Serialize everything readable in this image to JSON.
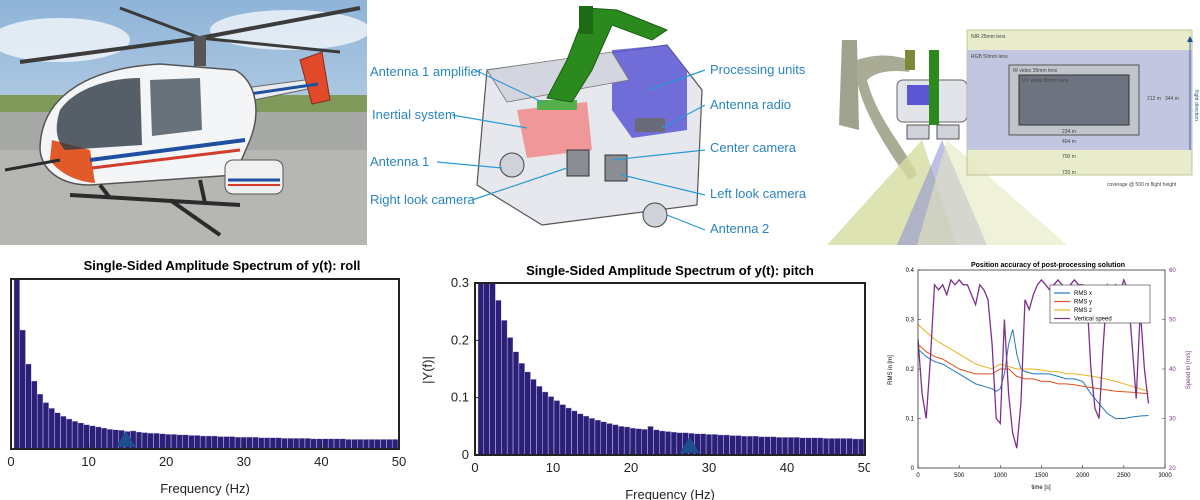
{
  "diagram": {
    "labels": {
      "antenna1_amplifier": "Antenna 1 amplifier",
      "inertial_system": "Inertial system",
      "antenna1": "Antenna 1",
      "right_look_camera": "Right look camera",
      "processing_units": "Processing units",
      "antenna_radio": "Antenna radio",
      "center_camera": "Center camera",
      "left_look_camera": "Left look camera",
      "antenna2": "Antenna 2"
    },
    "colors": {
      "label": "#2a84c2",
      "leader": "#2a9ad6",
      "arm": "#2a8a1e"
    }
  },
  "footprint": {
    "labels": {
      "nir_lens": "NIR 25mm lens",
      "rgb_lens": "RGB 50mm lens",
      "ir_video": "IR video 35mm lens",
      "uv_video": "UV video 50mm lens",
      "w234": "234 m",
      "w404": "404 m",
      "w700": "700 m",
      "w720": "720 m",
      "h212": "212 m",
      "h344": "344 m",
      "flight_direction": "flight direction",
      "coverage": "coverage @ 500 m flight height"
    }
  },
  "chart_data": [
    {
      "type": "bar",
      "title": "Single-Sided Amplitude Spectrum of y(t): roll",
      "xlabel": "Frequency (Hz)",
      "ylabel": "",
      "xlim": [
        0,
        50
      ],
      "ylim": [
        0,
        0.3
      ],
      "xticks": [
        "0",
        "10",
        "20",
        "30",
        "40",
        "50"
      ],
      "bar_color": "#2b1f7a",
      "marker": {
        "x": 14.8,
        "color": "#1f4e8c"
      },
      "x": [
        0.75,
        1.5,
        2.25,
        3,
        3.75,
        4.5,
        5.25,
        6,
        6.75,
        7.5,
        8.25,
        9,
        9.75,
        10.5,
        11.25,
        12,
        12.75,
        13.5,
        14.25,
        15,
        15.75,
        16.5,
        17.25,
        18,
        18.75,
        19.5,
        20.25,
        21,
        21.75,
        22.5,
        23.25,
        24,
        24.75,
        25.5,
        26.25,
        27,
        27.75,
        28.5,
        29.25,
        30,
        30.75,
        31.5,
        32.25,
        33,
        33.75,
        34.5,
        35.25,
        36,
        36.75,
        37.5,
        38.25,
        39,
        39.75,
        40.5,
        41.25,
        42,
        42.75,
        43.5,
        44.25,
        45,
        45.75,
        46.5,
        47.25,
        48,
        48.75,
        49.5
      ],
      "values": [
        0.3,
        0.21,
        0.15,
        0.12,
        0.097,
        0.082,
        0.072,
        0.064,
        0.058,
        0.053,
        0.049,
        0.046,
        0.043,
        0.041,
        0.039,
        0.037,
        0.035,
        0.034,
        0.033,
        0.031,
        0.032,
        0.03,
        0.029,
        0.028,
        0.028,
        0.027,
        0.026,
        0.026,
        0.025,
        0.025,
        0.024,
        0.024,
        0.023,
        0.023,
        0.023,
        0.022,
        0.022,
        0.022,
        0.021,
        0.021,
        0.021,
        0.021,
        0.02,
        0.02,
        0.02,
        0.02,
        0.019,
        0.019,
        0.019,
        0.019,
        0.019,
        0.018,
        0.018,
        0.018,
        0.018,
        0.018,
        0.018,
        0.017,
        0.017,
        0.017,
        0.017,
        0.017,
        0.017,
        0.017,
        0.017,
        0.017
      ]
    },
    {
      "type": "bar",
      "title": "Single-Sided Amplitude Spectrum of y(t): pitch",
      "xlabel": "Frequency (Hz)",
      "ylabel": "|Y(f)|",
      "xlim": [
        0,
        50
      ],
      "ylim": [
        0,
        0.3
      ],
      "xticks": [
        "0",
        "10",
        "20",
        "30",
        "40",
        "50"
      ],
      "yticks": [
        "0",
        "0.1",
        "0.2",
        "0.3"
      ],
      "bar_color": "#2b1f7a",
      "marker": {
        "x": 27.5,
        "color": "#1f4e8c"
      },
      "x": [
        0.75,
        1.5,
        2.25,
        3,
        3.75,
        4.5,
        5.25,
        6,
        6.75,
        7.5,
        8.25,
        9,
        9.75,
        10.5,
        11.25,
        12,
        12.75,
        13.5,
        14.25,
        15,
        15.75,
        16.5,
        17.25,
        18,
        18.75,
        19.5,
        20.25,
        21,
        21.75,
        22.5,
        23.25,
        24,
        24.75,
        25.5,
        26.25,
        27,
        27.75,
        28.5,
        29.25,
        30,
        30.75,
        31.5,
        32.25,
        33,
        33.75,
        34.5,
        35.25,
        36,
        36.75,
        37.5,
        38.25,
        39,
        39.75,
        40.5,
        41.25,
        42,
        42.75,
        43.5,
        44.25,
        45,
        45.75,
        46.5,
        47.25,
        48,
        48.75,
        49.5
      ],
      "values": [
        0.3,
        0.3,
        0.3,
        0.27,
        0.235,
        0.205,
        0.18,
        0.16,
        0.145,
        0.132,
        0.12,
        0.11,
        0.102,
        0.095,
        0.088,
        0.082,
        0.077,
        0.072,
        0.068,
        0.064,
        0.061,
        0.058,
        0.055,
        0.053,
        0.05,
        0.049,
        0.047,
        0.046,
        0.045,
        0.05,
        0.044,
        0.042,
        0.041,
        0.04,
        0.039,
        0.039,
        0.038,
        0.037,
        0.037,
        0.036,
        0.036,
        0.035,
        0.035,
        0.034,
        0.034,
        0.033,
        0.033,
        0.033,
        0.032,
        0.032,
        0.032,
        0.031,
        0.031,
        0.031,
        0.031,
        0.03,
        0.03,
        0.03,
        0.03,
        0.029,
        0.029,
        0.029,
        0.029,
        0.029,
        0.028,
        0.028
      ]
    },
    {
      "type": "line",
      "title": "Position accuracy of post-processing solution",
      "xlabel": "time [s]",
      "ylabel": "RMS in [m]",
      "y2label": "Speed in [m/s]",
      "xlim": [
        0,
        3000
      ],
      "ylim": [
        0,
        0.4
      ],
      "y2lim": [
        20,
        60
      ],
      "xticks": [
        "0",
        "500",
        "1000",
        "1500",
        "2000",
        "2500",
        "3000"
      ],
      "yticks": [
        "0",
        "0.1",
        "0.2",
        "0.3",
        "0.4"
      ],
      "y2ticks": [
        "20",
        "30",
        "40",
        "50",
        "60"
      ],
      "legend_position": "top-right",
      "series": [
        {
          "name": "RMS x",
          "axis": "left",
          "color": "#1f77c4",
          "x": [
            0,
            100,
            200,
            300,
            400,
            500,
            600,
            700,
            800,
            900,
            950,
            1000,
            1050,
            1100,
            1150,
            1200,
            1250,
            1300,
            1400,
            1500,
            1600,
            1700,
            1800,
            1900,
            2000,
            2100,
            2200,
            2300,
            2400,
            2500,
            2600,
            2700,
            2800
          ],
          "y": [
            0.24,
            0.225,
            0.215,
            0.21,
            0.2,
            0.19,
            0.18,
            0.17,
            0.165,
            0.16,
            0.155,
            0.16,
            0.19,
            0.25,
            0.28,
            0.23,
            0.2,
            0.195,
            0.19,
            0.19,
            0.19,
            0.185,
            0.18,
            0.18,
            0.175,
            0.15,
            0.13,
            0.11,
            0.1,
            0.1,
            0.103,
            0.105,
            0.106
          ]
        },
        {
          "name": "RMS y",
          "axis": "left",
          "color": "#e0521c",
          "x": [
            0,
            100,
            200,
            300,
            400,
            500,
            600,
            700,
            800,
            900,
            1000,
            1100,
            1200,
            1300,
            1400,
            1500,
            1600,
            1700,
            1800,
            1900,
            2000,
            2200,
            2400,
            2600,
            2800
          ],
          "y": [
            0.25,
            0.235,
            0.225,
            0.22,
            0.21,
            0.2,
            0.195,
            0.19,
            0.19,
            0.19,
            0.2,
            0.2,
            0.185,
            0.18,
            0.18,
            0.175,
            0.175,
            0.17,
            0.17,
            0.168,
            0.165,
            0.16,
            0.155,
            0.153,
            0.15
          ]
        },
        {
          "name": "RMS z",
          "axis": "left",
          "color": "#edb120",
          "x": [
            0,
            100,
            200,
            300,
            400,
            500,
            600,
            700,
            800,
            900,
            1000,
            1100,
            1200,
            1300,
            1400,
            1500,
            1600,
            1700,
            1800,
            1900,
            2000,
            2200,
            2400,
            2600,
            2800
          ],
          "y": [
            0.29,
            0.275,
            0.26,
            0.25,
            0.24,
            0.23,
            0.22,
            0.21,
            0.205,
            0.2,
            0.21,
            0.205,
            0.2,
            0.2,
            0.2,
            0.198,
            0.195,
            0.195,
            0.19,
            0.19,
            0.188,
            0.183,
            0.175,
            0.165,
            0.155
          ]
        },
        {
          "name": "Vertical speed",
          "axis": "right",
          "color": "#7e2f8e",
          "x": [
            0,
            50,
            100,
            150,
            200,
            250,
            300,
            350,
            400,
            450,
            500,
            550,
            600,
            650,
            700,
            750,
            800,
            850,
            900,
            950,
            1000,
            1050,
            1100,
            1150,
            1200,
            1250,
            1300,
            1350,
            1400,
            1450,
            1500,
            1550,
            1600,
            1650,
            1700,
            1750,
            1800,
            1850,
            1900,
            1950,
            2000,
            2050,
            2100,
            2150,
            2200,
            2250,
            2300,
            2350,
            2400,
            2450,
            2500,
            2550,
            2600,
            2650,
            2700,
            2750,
            2800
          ],
          "y": [
            46,
            35,
            30,
            42,
            57,
            56,
            57,
            55,
            58,
            57,
            58,
            57,
            57,
            55,
            53,
            57,
            56,
            54,
            45,
            30,
            29,
            50,
            35,
            27,
            24,
            33,
            54,
            52,
            55,
            57,
            58,
            57,
            56,
            57,
            58,
            57,
            56,
            57,
            58,
            57,
            57,
            55,
            40,
            32,
            30,
            45,
            57,
            56,
            57,
            55,
            58,
            56,
            45,
            34,
            52,
            40,
            33
          ]
        }
      ]
    }
  ]
}
